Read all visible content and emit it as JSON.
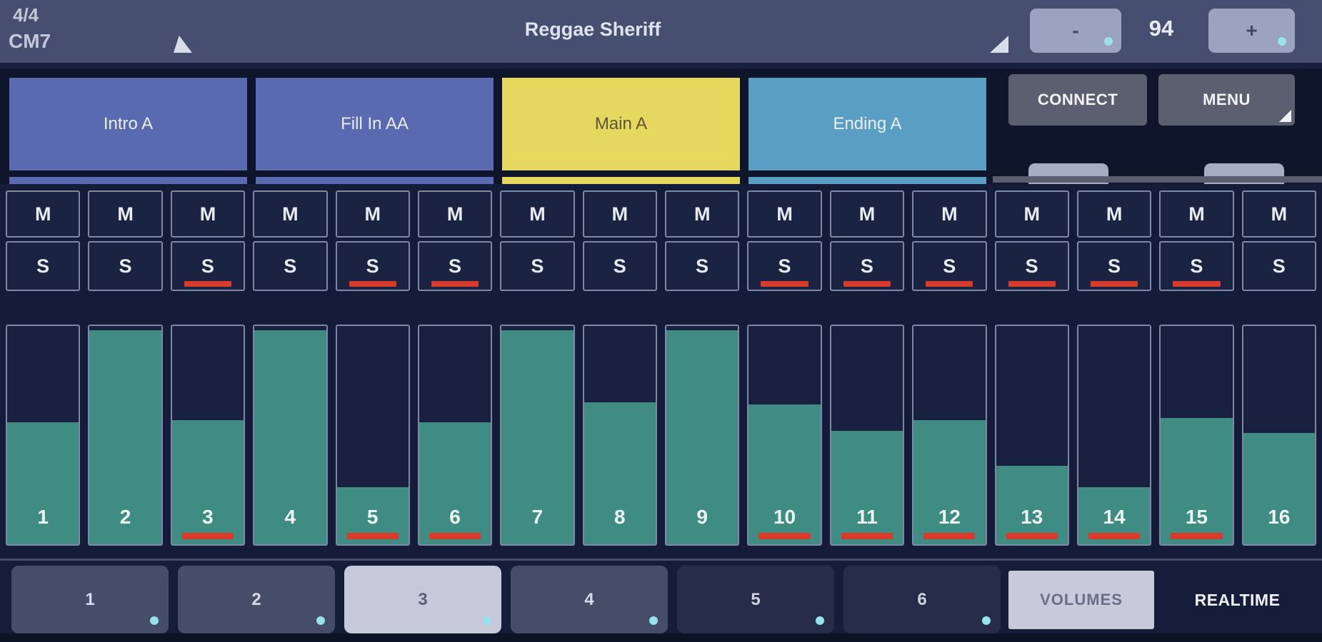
{
  "topbar": {
    "time_signature": "4/4",
    "chord": "CM7",
    "style_name": "Reggae Sheriff",
    "tempo": {
      "minus_label": "-",
      "value": "94",
      "plus_label": "+"
    }
  },
  "style_parts": [
    {
      "label": "Intro A",
      "type": "intro",
      "active": false
    },
    {
      "label": "Fill In AA",
      "type": "fill",
      "active": false
    },
    {
      "label": "Main A",
      "type": "main",
      "active": true
    },
    {
      "label": "Ending A",
      "type": "ending",
      "active": false
    }
  ],
  "header_actions": {
    "connect_label": "CONNECT",
    "menu_label": "MENU"
  },
  "mixer": {
    "mute_label": "M",
    "solo_label": "S",
    "channels": [
      {
        "number": "1",
        "volume_pct": 56,
        "accented": false
      },
      {
        "number": "2",
        "volume_pct": 98,
        "accented": false
      },
      {
        "number": "3",
        "volume_pct": 57,
        "accented": true
      },
      {
        "number": "4",
        "volume_pct": 98,
        "accented": false
      },
      {
        "number": "5",
        "volume_pct": 26,
        "accented": true
      },
      {
        "number": "6",
        "volume_pct": 56,
        "accented": true
      },
      {
        "number": "7",
        "volume_pct": 98,
        "accented": false
      },
      {
        "number": "8",
        "volume_pct": 65,
        "accented": false
      },
      {
        "number": "9",
        "volume_pct": 98,
        "accented": false
      },
      {
        "number": "10",
        "volume_pct": 64,
        "accented": true
      },
      {
        "number": "11",
        "volume_pct": 52,
        "accented": true
      },
      {
        "number": "12",
        "volume_pct": 57,
        "accented": true
      },
      {
        "number": "13",
        "volume_pct": 36,
        "accented": true
      },
      {
        "number": "14",
        "volume_pct": 26,
        "accented": true
      },
      {
        "number": "15",
        "volume_pct": 58,
        "accented": true
      },
      {
        "number": "16",
        "volume_pct": 51,
        "accented": false
      }
    ]
  },
  "bottom_bar": {
    "registration_buttons": [
      {
        "label": "1",
        "state": "normal"
      },
      {
        "label": "2",
        "state": "normal"
      },
      {
        "label": "3",
        "state": "selected"
      },
      {
        "label": "4",
        "state": "normal"
      },
      {
        "label": "5",
        "state": "dark"
      },
      {
        "label": "6",
        "state": "dark"
      }
    ],
    "volumes_label": "VOLUMES",
    "realtime_label": "REALTIME"
  },
  "colors": {
    "accent_red": "#d83b2c",
    "fader_fill": "#3f8d82",
    "part_intro": "#5a6ab0",
    "part_fill": "#5a6ab0",
    "part_main": "#e6d75f",
    "part_ending": "#5b9ec4",
    "long_press_dot": "#97e2ee"
  }
}
